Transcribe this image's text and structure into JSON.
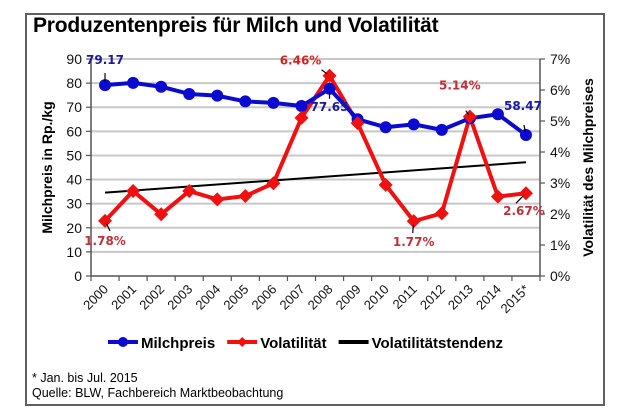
{
  "chart_data": {
    "type": "line",
    "title": "Produzentenpreis für Milch und Volatilität",
    "categories": [
      "2000",
      "2001",
      "2002",
      "2003",
      "2004",
      "2005",
      "2006",
      "2007",
      "2008",
      "2009",
      "2010",
      "2011",
      "2012",
      "2013",
      "2014",
      "2015*"
    ],
    "ylabel": "Milchpreis in Rp./kg",
    "y2label": "Volatilität des Milchpreises",
    "ylim": [
      0,
      90
    ],
    "yticks": [
      "0",
      "10",
      "20",
      "30",
      "40",
      "50",
      "60",
      "70",
      "80",
      "90"
    ],
    "y2lim": [
      0,
      7
    ],
    "y2ticks": [
      "0%",
      "1%",
      "2%",
      "3%",
      "4%",
      "5%",
      "6%",
      "7%"
    ],
    "grid": true,
    "legend_position": "bottom",
    "series": [
      {
        "name": "Milchpreis",
        "axis": "left",
        "color": "#0a0ad0",
        "marker": "circle",
        "values": [
          79.17,
          80.1,
          78.5,
          75.5,
          74.8,
          72.4,
          71.8,
          70.5,
          77.65,
          65.0,
          61.7,
          62.9,
          60.6,
          65.4,
          67.1,
          58.47
        ]
      },
      {
        "name": "Volatilität",
        "axis": "right",
        "unit": "%",
        "color": "#f01010",
        "marker": "diamond",
        "values": [
          1.78,
          2.74,
          1.99,
          2.74,
          2.47,
          2.58,
          2.99,
          5.1,
          6.46,
          4.93,
          2.94,
          1.77,
          2.02,
          5.14,
          2.56,
          2.67
        ]
      },
      {
        "name": "Volatilitätstendenz",
        "axis": "right",
        "unit": "%",
        "color": "#000000",
        "marker": "none",
        "values": [
          2.69,
          3.67
        ],
        "x_range": [
          "2000",
          "2015*"
        ]
      }
    ],
    "annotations": [
      {
        "series": "Milchpreis",
        "category": "2000",
        "text": "79.17",
        "color": "#1a1aa0"
      },
      {
        "series": "Milchpreis",
        "category": "2008",
        "text": "77.65",
        "color": "#1a1aa0"
      },
      {
        "series": "Milchpreis",
        "category": "2015*",
        "text": "58.47",
        "color": "#1a1aa0"
      },
      {
        "series": "Volatilität",
        "category": "2000",
        "text": "1.78%",
        "color": "#c0303a"
      },
      {
        "series": "Volatilität",
        "category": "2008",
        "text": "6.46%",
        "color": "#e02020"
      },
      {
        "series": "Volatilität",
        "category": "2011",
        "text": "1.77%",
        "color": "#c0303a"
      },
      {
        "series": "Volatilität",
        "category": "2013",
        "text": "5.14%",
        "color": "#c0303a"
      },
      {
        "series": "Volatilität",
        "category": "2015*",
        "text": "2.67%",
        "color": "#c0303a"
      }
    ]
  },
  "footnote": {
    "line1": "* Jan. bis Jul. 2015",
    "line2": "Quelle: BLW, Fachbereich Marktbeobachtung"
  }
}
